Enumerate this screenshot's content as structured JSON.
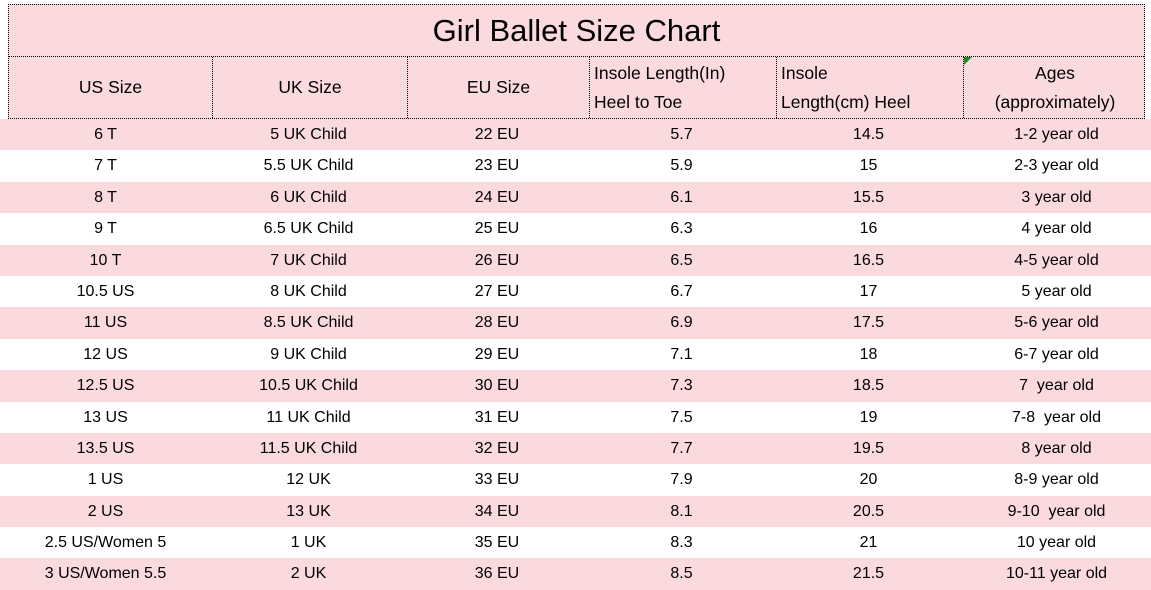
{
  "page": {
    "title_label": "Girl Ballet Size Chart"
  },
  "colors": {
    "stripe_pink": "#fbdade",
    "stripe_white": "#ffffff",
    "border_dotted": "#000000",
    "text": "#000000",
    "marker_green": "#1f8b24"
  },
  "header_cells": [
    {
      "line1": "US Size",
      "line2": "",
      "align": "center",
      "marker": false
    },
    {
      "line1": "UK Size",
      "line2": "",
      "align": "center",
      "marker": false
    },
    {
      "line1": "EU Size",
      "line2": "",
      "align": "center",
      "marker": false
    },
    {
      "line1": "Insole Length(In)",
      "line2": "Heel to Toe",
      "align": "left",
      "marker": false
    },
    {
      "line1": "Insole",
      "line2": "Length(cm) Heel",
      "align": "left",
      "marker": false
    },
    {
      "line1": "Ages",
      "line2": "(approximately)",
      "align": "center",
      "marker": true
    }
  ],
  "chart_data": {
    "type": "table",
    "title": "Girl Ballet Size Chart",
    "columns": [
      "US Size",
      "UK Size",
      "EU Size",
      "Insole Length(In) Heel to Toe",
      "Insole Length(cm) Heel",
      "Ages (approximately)"
    ],
    "rows": [
      [
        "6 T",
        "5 UK Child",
        "22 EU",
        "5.7",
        "14.5",
        "1-2 year old"
      ],
      [
        "7 T",
        "5.5 UK Child",
        "23 EU",
        "5.9",
        "15",
        "2-3 year old"
      ],
      [
        "8 T",
        "6 UK Child",
        "24 EU",
        "6.1",
        "15.5",
        "3 year old"
      ],
      [
        "9 T",
        "6.5 UK Child",
        "25 EU",
        "6.3",
        "16",
        "4 year old"
      ],
      [
        "10 T",
        "7 UK Child",
        "26 EU",
        "6.5",
        "16.5",
        "4-5 year old"
      ],
      [
        "10.5 US",
        "8 UK Child",
        "27 EU",
        "6.7",
        "17",
        "5 year old"
      ],
      [
        "11 US",
        "8.5 UK Child",
        "28 EU",
        "6.9",
        "17.5",
        "5-6 year old"
      ],
      [
        "12 US",
        "9 UK Child",
        "29 EU",
        "7.1",
        "18",
        "6-7 year old"
      ],
      [
        "12.5 US",
        "10.5 UK Child",
        "30 EU",
        "7.3",
        "18.5",
        "7  year old"
      ],
      [
        "13 US",
        "11 UK Child",
        "31 EU",
        "7.5",
        "19",
        "7-8  year old"
      ],
      [
        "13.5 US",
        "11.5 UK Child",
        "32 EU",
        "7.7",
        "19.5",
        "8 year old"
      ],
      [
        "1 US",
        "12 UK",
        "33 EU",
        "7.9",
        "20",
        "8-9 year old"
      ],
      [
        "2 US",
        "13 UK",
        "34 EU",
        "8.1",
        "20.5",
        "9-10  year old"
      ],
      [
        "2.5 US/Women 5",
        "1 UK",
        "35 EU",
        "8.3",
        "21",
        "10 year old"
      ],
      [
        "3 US/Women 5.5",
        "2 UK",
        "36 EU",
        "8.5",
        "21.5",
        "10-11 year old"
      ]
    ]
  }
}
